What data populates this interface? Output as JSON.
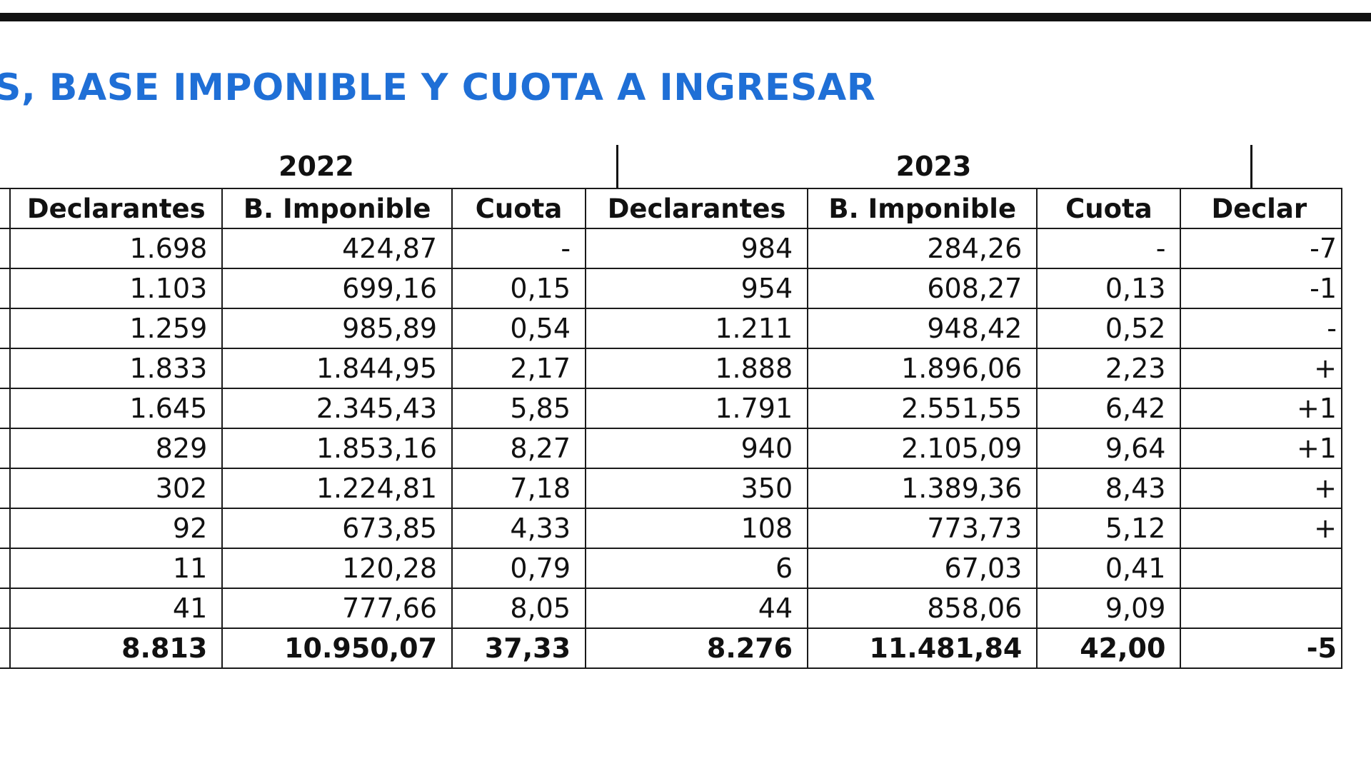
{
  "title": "S, BASE IMPONIBLE Y CUOTA A INGRESAR",
  "years": [
    "2022",
    "2023"
  ],
  "columns": [
    "Declarantes",
    "B. Imponible",
    "Cuota",
    "Declarantes",
    "B. Imponible",
    "Cuota",
    "Declar"
  ],
  "rows": [
    [
      "1.698",
      "424,87",
      "-",
      "984",
      "284,26",
      "-",
      "-7"
    ],
    [
      "1.103",
      "699,16",
      "0,15",
      "954",
      "608,27",
      "0,13",
      "-1"
    ],
    [
      "1.259",
      "985,89",
      "0,54",
      "1.211",
      "948,42",
      "0,52",
      "-"
    ],
    [
      "1.833",
      "1.844,95",
      "2,17",
      "1.888",
      "1.896,06",
      "2,23",
      "+"
    ],
    [
      "1.645",
      "2.345,43",
      "5,85",
      "1.791",
      "2.551,55",
      "6,42",
      "+1"
    ],
    [
      "829",
      "1.853,16",
      "8,27",
      "940",
      "2.105,09",
      "9,64",
      "+1"
    ],
    [
      "302",
      "1.224,81",
      "7,18",
      "350",
      "1.389,36",
      "8,43",
      "+"
    ],
    [
      "92",
      "673,85",
      "4,33",
      "108",
      "773,73",
      "5,12",
      "+"
    ],
    [
      "11",
      "120,28",
      "0,79",
      "6",
      "67,03",
      "0,41",
      ""
    ],
    [
      "41",
      "777,66",
      "8,05",
      "44",
      "858,06",
      "9,09",
      ""
    ]
  ],
  "total_row": [
    "8.813",
    "10.950,07",
    "37,33",
    "8.276",
    "11.481,84",
    "42,00",
    "-5"
  ],
  "colors": {
    "title": "#1f6fd6",
    "rule": "#111111",
    "border": "#1a1a1a"
  }
}
